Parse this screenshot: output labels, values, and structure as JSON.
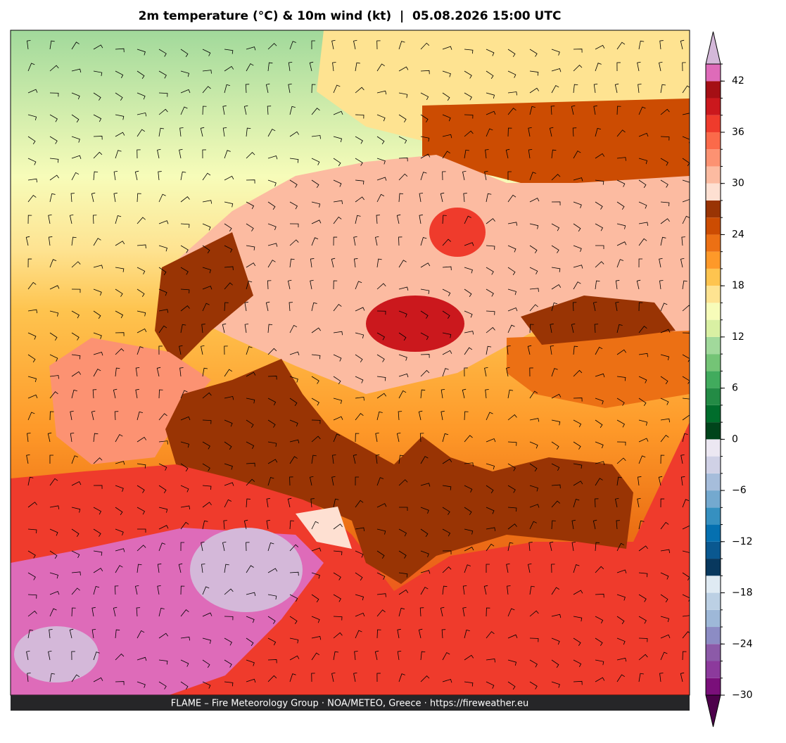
{
  "map": {
    "title": "2m temperature (°C) & 10m wind (kt)  |  05.08.2026 15:00 UTC",
    "footer": "FLAME – Fire Meteorology Group · NOA/METEO, Greece · https://fireweather.eu",
    "colorbar": {
      "levels": [
        -30,
        -28,
        -26,
        -24,
        -22,
        -20,
        -18,
        -16,
        -14,
        -12,
        -10,
        -8,
        -6,
        -4,
        -2,
        0,
        2,
        4,
        6,
        8,
        10,
        12,
        14,
        16,
        18,
        20,
        22,
        24,
        26,
        28,
        30,
        32,
        34,
        36,
        38,
        40,
        42,
        44
      ],
      "colors": [
        "#7a0f7a",
        "#8c3a9c",
        "#8c5aa8",
        "#8c8cc4",
        "#9eb8d8",
        "#bcd0e4",
        "#dfeaf3",
        "#08385e",
        "#0a5890",
        "#0570b0",
        "#3690c0",
        "#74a9cf",
        "#a6bddb",
        "#d0d1e6",
        "#ece7f2",
        "#00441b",
        "#006d2c",
        "#238b45",
        "#41ab5d",
        "#74c476",
        "#a1d99b",
        "#d9f0a3",
        "#f7fcb9",
        "#fee391",
        "#fec44f",
        "#fe9929",
        "#ec7014",
        "#cc4c02",
        "#993404",
        "#fee0d2",
        "#fcbba1",
        "#fc9272",
        "#fb6a4a",
        "#ef3b2c",
        "#cb181d",
        "#a50f15",
        "#de6bb9"
      ],
      "extend_colors": [
        "#4d004b",
        "#d4b8d9"
      ],
      "ticks": [
        {
          "value": -30,
          "label": "−30"
        },
        {
          "value": -24,
          "label": "−24"
        },
        {
          "value": -18,
          "label": "−18"
        },
        {
          "value": -12,
          "label": "−12"
        },
        {
          "value": -6,
          "label": "−6"
        },
        0,
        6,
        12,
        18,
        24,
        30,
        36,
        42
      ]
    }
  }
}
